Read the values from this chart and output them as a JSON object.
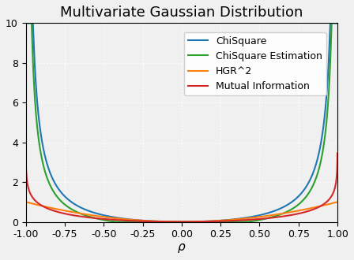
{
  "title": "Multivariate Gaussian Distribution",
  "xlabel": "$\\rho$",
  "xlim": [
    -1.0,
    1.0
  ],
  "ylim": [
    0,
    10
  ],
  "yticks": [
    0,
    2,
    4,
    6,
    8,
    10
  ],
  "xticks": [
    -1.0,
    -0.75,
    -0.5,
    -0.25,
    0.0,
    0.25,
    0.5,
    0.75,
    1.0
  ],
  "legend": [
    {
      "label": "ChiSquare",
      "color": "#1f77b4"
    },
    {
      "label": "ChiSquare Estimation",
      "color": "#2ca02c"
    },
    {
      "label": "HGR^2",
      "color": "#ff7f0e"
    },
    {
      "label": "Mutual Information",
      "color": "#d62728"
    }
  ],
  "background_color": "#f0f0f0",
  "grid_color": "#ffffff",
  "title_fontsize": 13,
  "axis_fontsize": 11,
  "legend_fontsize": 9,
  "chi_square_scale": 1.0,
  "chi_square_est_scale": 0.72,
  "n_samples": 100
}
